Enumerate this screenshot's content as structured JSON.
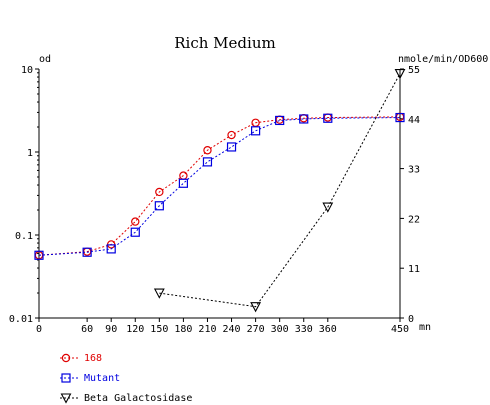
{
  "chart_data": {
    "type": "line",
    "title": "Rich Medium",
    "y_left": {
      "label": "od",
      "scale": "log",
      "range": [
        0.01,
        10
      ],
      "ticks": [
        "0.01",
        "0.1",
        "1",
        "10"
      ],
      "tick_values": [
        0.01,
        0.1,
        1,
        10
      ]
    },
    "y_right": {
      "label": "nmole/min/OD600",
      "scale": "linear",
      "range": [
        0,
        55
      ],
      "ticks": [
        "0",
        "11",
        "22",
        "33",
        "44",
        "55"
      ],
      "tick_values": [
        0,
        11,
        22,
        33,
        44,
        55
      ]
    },
    "x": {
      "label": "mn",
      "range": [
        0,
        450
      ],
      "ticks": [
        "0",
        "60",
        "90",
        "120",
        "150",
        "180",
        "210",
        "240",
        "270",
        "300",
        "330",
        "360",
        "450"
      ],
      "tick_values": [
        0,
        60,
        90,
        120,
        150,
        180,
        210,
        240,
        270,
        300,
        330,
        360,
        450
      ]
    },
    "grid": false,
    "legend_position": "bottom-left",
    "series": [
      {
        "name": "168",
        "axis": "left",
        "color": "#e00000",
        "marker": "circle",
        "points": [
          [
            0,
            0.057
          ],
          [
            60,
            0.063
          ],
          [
            90,
            0.077
          ],
          [
            120,
            0.145
          ],
          [
            150,
            0.33
          ],
          [
            180,
            0.52
          ],
          [
            210,
            1.05
          ],
          [
            240,
            1.6
          ],
          [
            270,
            2.25
          ],
          [
            300,
            2.45
          ],
          [
            330,
            2.55
          ],
          [
            360,
            2.6
          ],
          [
            450,
            2.65
          ]
        ]
      },
      {
        "name": "Mutant",
        "axis": "left",
        "color": "#0000e0",
        "marker": "square",
        "points": [
          [
            0,
            0.057
          ],
          [
            60,
            0.062
          ],
          [
            90,
            0.068
          ],
          [
            120,
            0.108
          ],
          [
            150,
            0.225
          ],
          [
            180,
            0.42
          ],
          [
            210,
            0.76
          ],
          [
            240,
            1.15
          ],
          [
            270,
            1.8
          ],
          [
            300,
            2.4
          ],
          [
            330,
            2.5
          ],
          [
            360,
            2.55
          ],
          [
            450,
            2.6
          ]
        ]
      },
      {
        "name": "Beta Galactosidase",
        "axis": "right",
        "color": "#000000",
        "marker": "triangle-down",
        "points": [
          [
            150,
            5.5
          ],
          [
            270,
            2.5
          ],
          [
            360,
            24.5
          ],
          [
            450,
            54
          ]
        ]
      }
    ]
  }
}
